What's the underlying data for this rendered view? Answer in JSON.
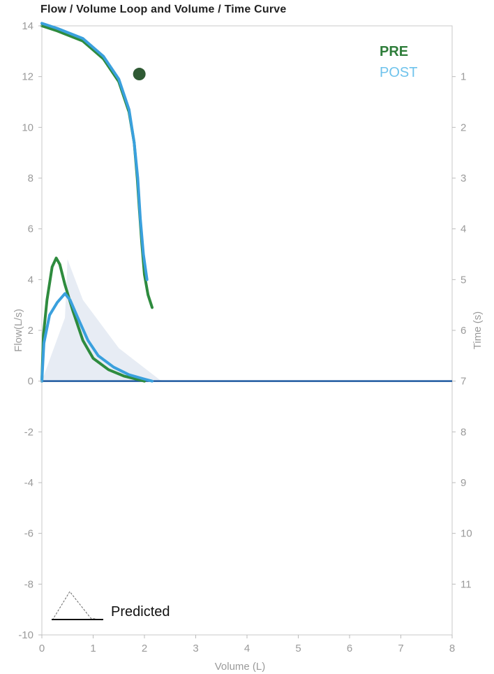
{
  "title": "Flow / Volume Loop and Volume / Time Curve",
  "chart_data": {
    "type": "line",
    "title": "Flow / Volume Loop and Volume / Time Curve",
    "xlabel": "Volume (L)",
    "ylabel": "Flow(L/s)",
    "y2label": "Time (s)",
    "xlim": [
      0,
      8
    ],
    "ylim": [
      -10,
      14
    ],
    "y2lim": [
      0,
      12
    ],
    "y2_inverted": true,
    "x_ticks": [
      0,
      1,
      2,
      3,
      4,
      5,
      6,
      7,
      8
    ],
    "y_ticks": [
      14,
      12,
      10,
      8,
      6,
      4,
      2,
      0,
      -2,
      -4,
      -6,
      -8,
      -10
    ],
    "y2_ticks": [
      1,
      2,
      3,
      4,
      5,
      6,
      7,
      8,
      9,
      10,
      11
    ],
    "grid": false,
    "legend_position": "top-right",
    "legend": [
      {
        "name": "PRE",
        "color": "#2e7d3a"
      },
      {
        "name": "POST",
        "color": "#6fc3ec"
      }
    ],
    "predicted_label": "Predicted",
    "series": [
      {
        "name": "PRE",
        "color": "#2e8b3e",
        "flow_volume": [
          [
            0,
            0
          ],
          [
            0.03,
            1.8
          ],
          [
            0.1,
            3.2
          ],
          [
            0.2,
            4.5
          ],
          [
            0.28,
            4.85
          ],
          [
            0.35,
            4.6
          ],
          [
            0.45,
            3.8
          ],
          [
            0.6,
            2.8
          ],
          [
            0.8,
            1.6
          ],
          [
            1.0,
            0.9
          ],
          [
            1.3,
            0.45
          ],
          [
            1.6,
            0.2
          ],
          [
            1.9,
            0.05
          ],
          [
            2.0,
            0
          ]
        ],
        "volume_time": [
          [
            0,
            0
          ],
          [
            0.3,
            0.1
          ],
          [
            0.8,
            0.3
          ],
          [
            1.2,
            0.65
          ],
          [
            1.5,
            1.1
          ],
          [
            1.7,
            1.7
          ],
          [
            1.8,
            2.3
          ],
          [
            1.86,
            3.0
          ],
          [
            1.9,
            3.6
          ],
          [
            1.95,
            4.3
          ],
          [
            2.0,
            4.9
          ],
          [
            2.07,
            5.3
          ],
          [
            2.15,
            5.55
          ]
        ]
      },
      {
        "name": "POST",
        "color": "#3aa0dd",
        "flow_volume": [
          [
            0,
            0
          ],
          [
            0.04,
            1.5
          ],
          [
            0.15,
            2.6
          ],
          [
            0.3,
            3.1
          ],
          [
            0.45,
            3.45
          ],
          [
            0.55,
            3.2
          ],
          [
            0.7,
            2.5
          ],
          [
            0.9,
            1.6
          ],
          [
            1.1,
            1.0
          ],
          [
            1.4,
            0.55
          ],
          [
            1.7,
            0.25
          ],
          [
            2.0,
            0.08
          ],
          [
            2.15,
            0
          ]
        ],
        "volume_time": [
          [
            0,
            -0.05
          ],
          [
            0.3,
            0.05
          ],
          [
            0.8,
            0.25
          ],
          [
            1.2,
            0.6
          ],
          [
            1.5,
            1.05
          ],
          [
            1.7,
            1.65
          ],
          [
            1.8,
            2.3
          ],
          [
            1.87,
            3.0
          ],
          [
            1.92,
            3.8
          ],
          [
            1.98,
            4.5
          ],
          [
            2.05,
            5.0
          ]
        ]
      }
    ],
    "predicted": [
      [
        0,
        0
      ],
      [
        0.45,
        2.5
      ],
      [
        0.5,
        4.8
      ],
      [
        0.8,
        3.2
      ],
      [
        1.5,
        1.3
      ],
      [
        2.3,
        0.05
      ],
      [
        2.4,
        0
      ]
    ],
    "markers": [
      {
        "x": 1.9,
        "time": 0.95,
        "color": "#2f5a34"
      }
    ]
  }
}
